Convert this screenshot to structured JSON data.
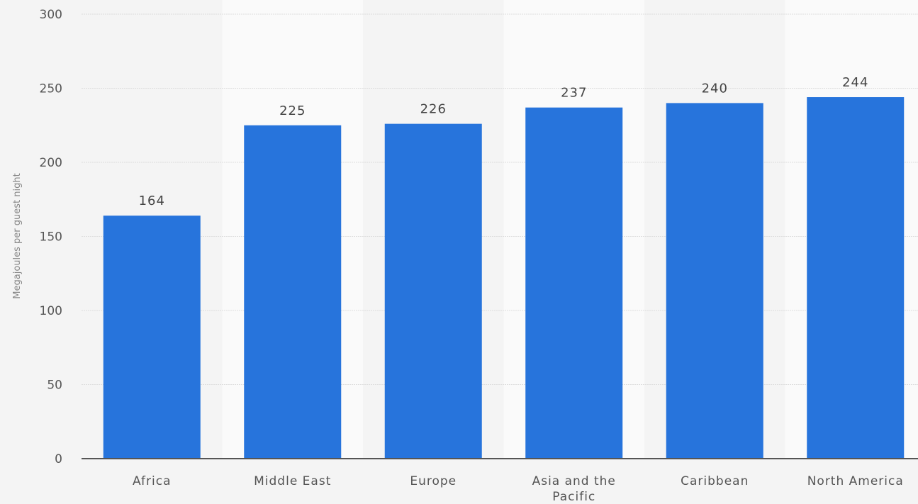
{
  "chart_data": {
    "type": "bar",
    "categories": [
      "Africa",
      "Middle East",
      "Europe",
      "Asia and the Pacific",
      "Caribbean",
      "North America"
    ],
    "category_label_lines": [
      [
        "Africa"
      ],
      [
        "Middle East"
      ],
      [
        "Europe"
      ],
      [
        "Asia and the",
        "Pacific"
      ],
      [
        "Caribbean"
      ],
      [
        "North America"
      ]
    ],
    "values": [
      164,
      225,
      226,
      237,
      240,
      244
    ],
    "value_labels": [
      "164",
      "225",
      "226",
      "237",
      "240",
      "244"
    ],
    "title": "",
    "xlabel": "",
    "ylabel": "Megajoules per guest night",
    "ylim": [
      0,
      300
    ],
    "yticks": [
      0,
      50,
      100,
      150,
      200,
      250,
      300
    ],
    "grid": true,
    "legend": "none",
    "colors": {
      "bar": "#2774dc",
      "background": "#f4f4f4",
      "band": "#fafafa",
      "grid": "#dddddd",
      "axis": "#555555"
    }
  }
}
